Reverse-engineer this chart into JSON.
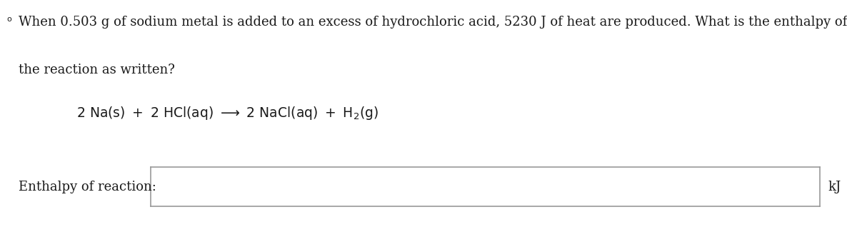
{
  "background_color": "#ffffff",
  "line1_text": "When 0.503 g of sodium metal is added to an excess of hydrochloric acid, 5230 J of heat are produced. What is the enthalpy of",
  "line2_text": "the reaction as written?",
  "equation_str": "$2\\ \\mathrm{Na(s)}\\ +\\ 2\\ \\mathrm{HCl(aq)}\\ \\longrightarrow\\ 2\\ \\mathrm{NaCl(aq)}\\ +\\ \\mathrm{H_2(g)}$",
  "label_text": "Enthalpy of reaction:",
  "unit_text": "kJ",
  "font_size_main": 13.0,
  "font_size_equation": 13.5,
  "font_size_label": 13.0,
  "text_color": "#1a1a1a",
  "box_edge_color": "#999999",
  "box_face_color": "#ffffff",
  "bullet_char": "o"
}
